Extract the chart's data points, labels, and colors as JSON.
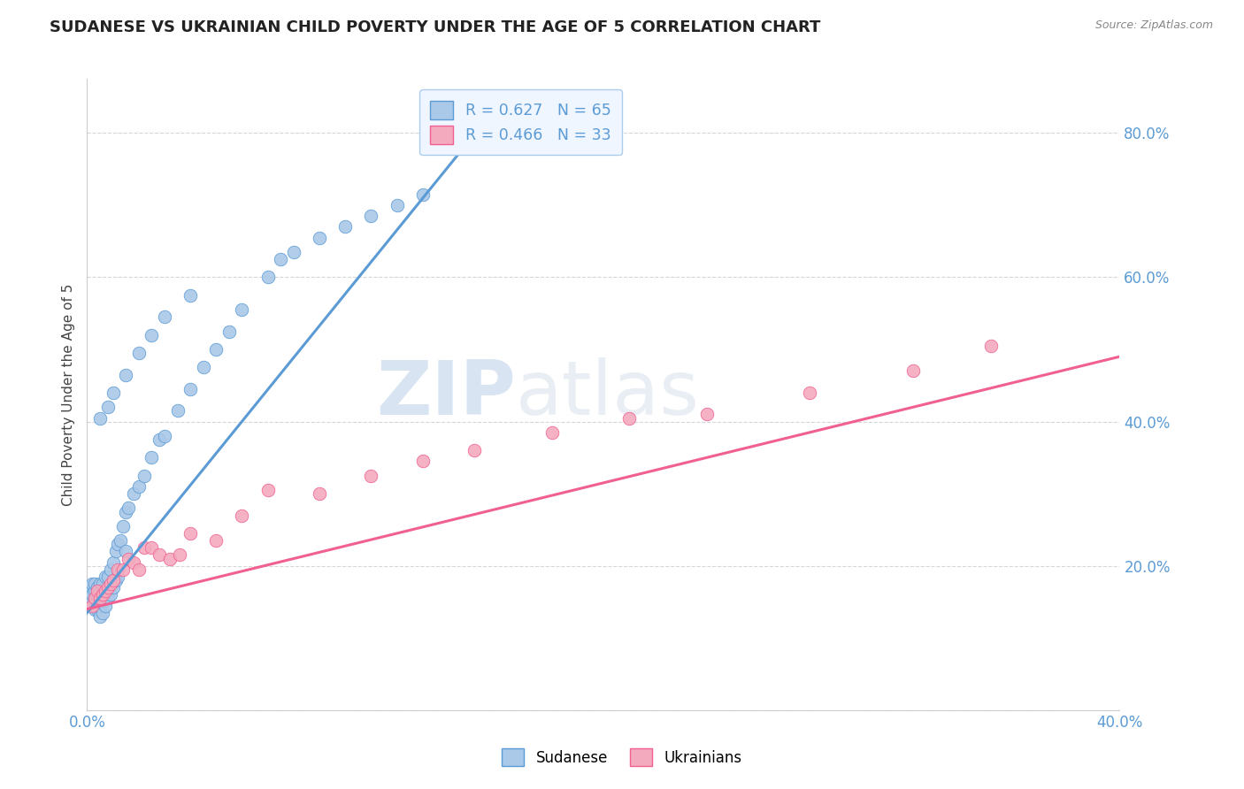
{
  "title": "SUDANESE VS UKRAINIAN CHILD POVERTY UNDER THE AGE OF 5 CORRELATION CHART",
  "source": "Source: ZipAtlas.com",
  "ylabel": "Child Poverty Under the Age of 5",
  "x_range": [
    0.0,
    0.4
  ],
  "y_range": [
    0.0,
    0.875
  ],
  "sudanese_R": 0.627,
  "sudanese_N": 65,
  "ukrainian_R": 0.466,
  "ukrainian_N": 33,
  "sudanese_color": "#aac8e8",
  "ukrainian_color": "#f4aabe",
  "sudanese_line_color": "#5b9bd5",
  "ukrainian_line_color": "#f06090",
  "watermark_color": "#c8d8ec",
  "background_color": "#ffffff",
  "grid_color": "#cccccc",
  "sudanese_x": [
    0.001,
    0.001,
    0.002,
    0.002,
    0.002,
    0.003,
    0.003,
    0.003,
    0.003,
    0.004,
    0.004,
    0.004,
    0.005,
    0.005,
    0.005,
    0.005,
    0.006,
    0.006,
    0.006,
    0.007,
    0.007,
    0.007,
    0.008,
    0.008,
    0.009,
    0.009,
    0.01,
    0.01,
    0.011,
    0.011,
    0.012,
    0.012,
    0.013,
    0.014,
    0.015,
    0.015,
    0.016,
    0.018,
    0.02,
    0.022,
    0.025,
    0.028,
    0.03,
    0.035,
    0.04,
    0.045,
    0.05,
    0.055,
    0.06,
    0.07,
    0.075,
    0.08,
    0.09,
    0.1,
    0.11,
    0.12,
    0.13,
    0.005,
    0.008,
    0.01,
    0.015,
    0.02,
    0.025,
    0.03,
    0.04
  ],
  "sudanese_y": [
    0.155,
    0.17,
    0.145,
    0.16,
    0.175,
    0.14,
    0.155,
    0.165,
    0.175,
    0.14,
    0.155,
    0.17,
    0.13,
    0.145,
    0.155,
    0.175,
    0.135,
    0.155,
    0.175,
    0.145,
    0.16,
    0.185,
    0.155,
    0.185,
    0.16,
    0.195,
    0.17,
    0.205,
    0.18,
    0.22,
    0.185,
    0.23,
    0.235,
    0.255,
    0.22,
    0.275,
    0.28,
    0.3,
    0.31,
    0.325,
    0.35,
    0.375,
    0.38,
    0.415,
    0.445,
    0.475,
    0.5,
    0.525,
    0.555,
    0.6,
    0.625,
    0.635,
    0.655,
    0.67,
    0.685,
    0.7,
    0.715,
    0.405,
    0.42,
    0.44,
    0.465,
    0.495,
    0.52,
    0.545,
    0.575
  ],
  "ukrainian_x": [
    0.002,
    0.003,
    0.004,
    0.005,
    0.006,
    0.007,
    0.008,
    0.009,
    0.01,
    0.012,
    0.014,
    0.016,
    0.018,
    0.02,
    0.022,
    0.025,
    0.028,
    0.032,
    0.036,
    0.04,
    0.05,
    0.06,
    0.07,
    0.09,
    0.11,
    0.13,
    0.15,
    0.18,
    0.21,
    0.24,
    0.28,
    0.32,
    0.35
  ],
  "ukrainian_y": [
    0.145,
    0.155,
    0.165,
    0.155,
    0.16,
    0.165,
    0.17,
    0.175,
    0.18,
    0.195,
    0.195,
    0.21,
    0.205,
    0.195,
    0.225,
    0.225,
    0.215,
    0.21,
    0.215,
    0.245,
    0.235,
    0.27,
    0.305,
    0.3,
    0.325,
    0.345,
    0.36,
    0.385,
    0.405,
    0.41,
    0.44,
    0.47,
    0.505
  ],
  "sudanese_line_x": [
    0.0,
    0.155
  ],
  "sudanese_line_y": [
    0.135,
    0.82
  ],
  "ukrainian_line_x": [
    0.0,
    0.4
  ],
  "ukrainian_line_y": [
    0.14,
    0.49
  ]
}
